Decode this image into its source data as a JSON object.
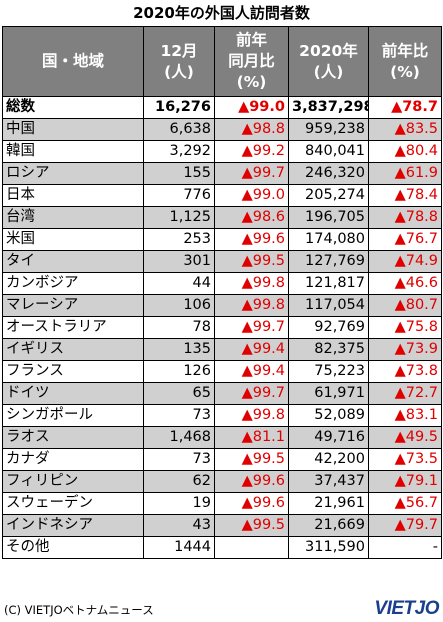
{
  "title": "2020年の外国人訪問者数",
  "headers": [
    "国・地域",
    "12月\n(人)",
    "前年\n同月比\n(%)",
    "2020年\n(人)",
    "前年比\n(%)"
  ],
  "rows": [
    {
      "country": "総数",
      "dec": "16,276",
      "dec_change": "▲99.0",
      "year": "3,837,298",
      "year_change": "▲78.7"
    },
    {
      "country": "中国",
      "dec": "6,638",
      "dec_change": "▲98.8",
      "year": "959,238",
      "year_change": "▲83.5"
    },
    {
      "country": "韓国",
      "dec": "3,292",
      "dec_change": "▲99.2",
      "year": "840,041",
      "year_change": "▲80.4"
    },
    {
      "country": "ロシア",
      "dec": "155",
      "dec_change": "▲99.7",
      "year": "246,320",
      "year_change": "▲61.9"
    },
    {
      "country": "日本",
      "dec": "776",
      "dec_change": "▲99.0",
      "year": "205,274",
      "year_change": "▲78.4"
    },
    {
      "country": "台湾",
      "dec": "1,125",
      "dec_change": "▲98.6",
      "year": "196,705",
      "year_change": "▲78.8"
    },
    {
      "country": "米国",
      "dec": "253",
      "dec_change": "▲99.6",
      "year": "174,080",
      "year_change": "▲76.7"
    },
    {
      "country": "タイ",
      "dec": "301",
      "dec_change": "▲99.5",
      "year": "127,769",
      "year_change": "▲74.9"
    },
    {
      "country": "カンボジア",
      "dec": "44",
      "dec_change": "▲99.8",
      "year": "121,817",
      "year_change": "▲46.6"
    },
    {
      "country": "マレーシア",
      "dec": "106",
      "dec_change": "▲99.8",
      "year": "117,054",
      "year_change": "▲80.7"
    },
    {
      "country": "オーストラリア",
      "dec": "78",
      "dec_change": "▲99.7",
      "year": "92,769",
      "year_change": "▲75.8"
    },
    {
      "country": "イギリス",
      "dec": "135",
      "dec_change": "▲99.4",
      "year": "82,375",
      "year_change": "▲73.9"
    },
    {
      "country": "フランス",
      "dec": "126",
      "dec_change": "▲99.4",
      "year": "75,223",
      "year_change": "▲73.8"
    },
    {
      "country": "ドイツ",
      "dec": "65",
      "dec_change": "▲99.7",
      "year": "61,971",
      "year_change": "▲72.7"
    },
    {
      "country": "シンガポール",
      "dec": "73",
      "dec_change": "▲99.8",
      "year": "52,089",
      "year_change": "▲83.1"
    },
    {
      "country": "ラオス",
      "dec": "1,468",
      "dec_change": "▲81.1",
      "year": "49,716",
      "year_change": "▲49.5"
    },
    {
      "country": "カナダ",
      "dec": "73",
      "dec_change": "▲99.5",
      "year": "42,200",
      "year_change": "▲73.5"
    },
    {
      "country": "フィリピン",
      "dec": "62",
      "dec_change": "▲99.6",
      "year": "37,437",
      "year_change": "▲79.1"
    },
    {
      "country": "スウェーデン",
      "dec": "19",
      "dec_change": "▲99.6",
      "year": "21,961",
      "year_change": "▲56.7"
    },
    {
      "country": "インドネシア",
      "dec": "43",
      "dec_change": "▲99.5",
      "year": "21,669",
      "year_change": "▲79.7"
    },
    {
      "country": "その他",
      "dec": "1444",
      "dec_change": "",
      "year": "311,590",
      "year_change": "-"
    }
  ],
  "credit": "(C) VIETJOベトナムニュース",
  "logo": "VIETJO",
  "colors": {
    "header_bg": "#808080",
    "shade": "#d0d0d0",
    "negative": "#e00000",
    "logo": "#1a3f8f"
  }
}
